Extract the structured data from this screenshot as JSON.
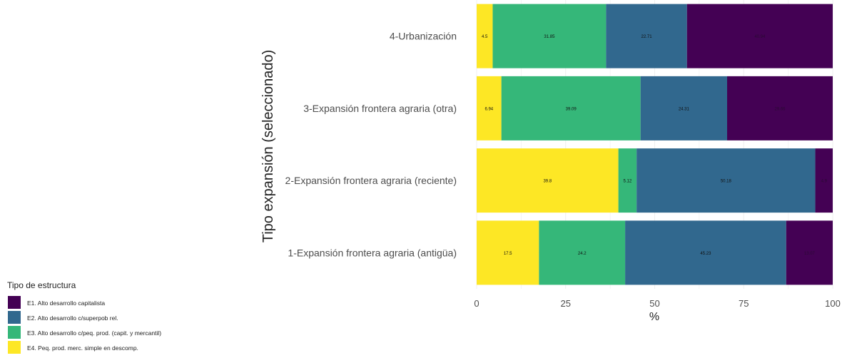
{
  "chart_data": {
    "type": "bar",
    "orientation": "horizontal",
    "stacked": true,
    "xlabel": "%",
    "ylabel": "Tipo expansión (seleccionado)",
    "xlim": [
      0,
      100
    ],
    "xticks": [
      "0",
      "25",
      "50",
      "75",
      "100"
    ],
    "grid": true,
    "legend_position": "bottom-left",
    "legend_title": "Tipo de estructura",
    "categories": [
      "1-Expansión frontera agraria (antigüa)",
      "2-Expansión frontera agraria (reciente)",
      "3-Expansión frontera agraria (otra)",
      "4-Urbanización"
    ],
    "series": [
      {
        "name": "E4. Peq. prod. merc. simple en descomp.",
        "color": "#fde725",
        "values": [
          17.5,
          39.8,
          6.94,
          4.5
        ],
        "labels": [
          "17.5",
          "39.8",
          "6.94",
          "4.5"
        ]
      },
      {
        "name": "E3. Alto desarrollo c/peq. prod. (capit. y mercantil)",
        "color": "#35b779",
        "values": [
          24.2,
          5.12,
          39.09,
          31.85
        ],
        "labels": [
          "24.2",
          "5.12",
          "39.09",
          "31.85"
        ]
      },
      {
        "name": "E2. Alto desarrollo c/superpob rel.",
        "color": "#31688e",
        "values": [
          45.23,
          50.18,
          24.31,
          22.71
        ],
        "labels": [
          "45.23",
          "50.18",
          "24.31",
          "22.71"
        ]
      },
      {
        "name": "E1. Alto desarrollo capitalista",
        "color": "#440154",
        "values": [
          13.07,
          4.9,
          29.66,
          40.94
        ],
        "labels": [
          "13.07",
          "4.9",
          "29.66",
          "40.94"
        ]
      }
    ]
  }
}
